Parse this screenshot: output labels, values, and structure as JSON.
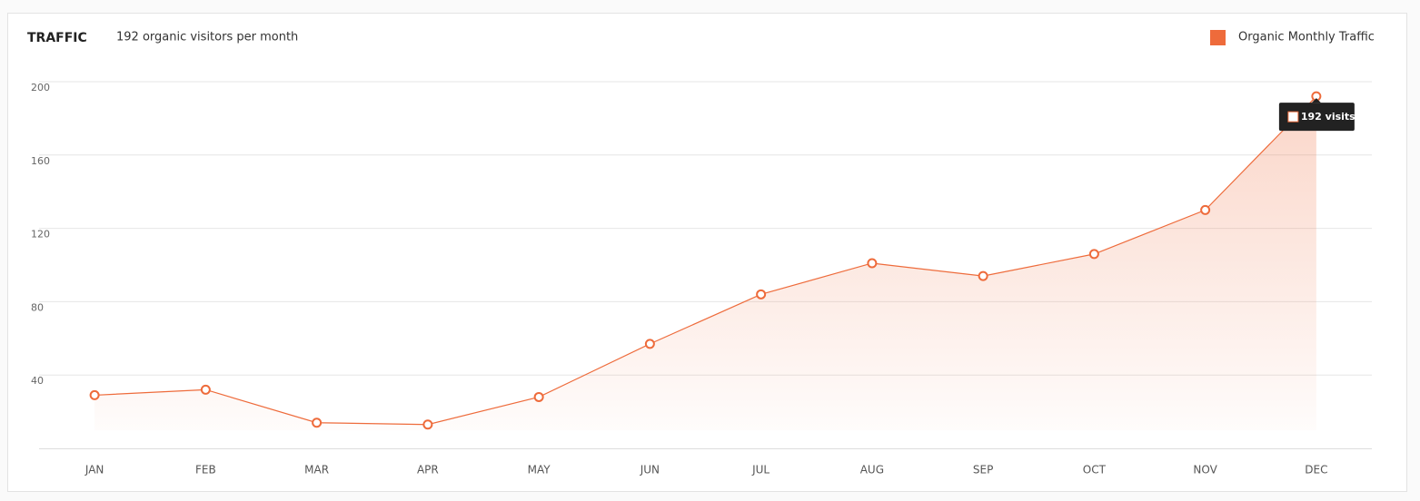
{
  "chart_data": {
    "type": "line",
    "title": "TRAFFIC",
    "subtitle": "192 organic visitors per month",
    "categories": [
      "JAN",
      "FEB",
      "MAR",
      "APR",
      "MAY",
      "JUN",
      "JUL",
      "AUG",
      "SEP",
      "OCT",
      "NOV",
      "DEC"
    ],
    "series": [
      {
        "name": "Organic Monthly Traffic",
        "color": "#ee6b3b",
        "values": [
          29,
          32,
          14,
          13,
          28,
          57,
          84,
          101,
          94,
          106,
          130,
          192
        ],
        "value_labels": [
          null,
          null,
          null,
          null,
          null,
          null,
          null,
          null,
          null,
          null,
          null,
          "192 visits"
        ]
      }
    ],
    "ylim": [
      0,
      200
    ],
    "yticks": [
      40,
      80,
      120,
      160,
      200
    ],
    "grid": true,
    "legend": "top-right"
  }
}
